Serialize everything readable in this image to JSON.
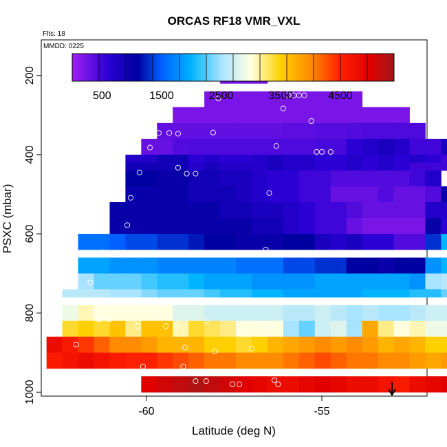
{
  "chart_data": {
    "type": "heatmap",
    "title": "ORCAS RF18 VMR_VXL",
    "flights_label": "Flts: 18",
    "date_label": "MMDD: 0225",
    "xlabel": "Latitude (deg N)",
    "ylabel": "PSXC (mbar)",
    "xlim": [
      -63.0,
      -52.0
    ],
    "ylim": [
      1010,
      110
    ],
    "y_reversed": true,
    "x_ticks": [
      -60,
      -55
    ],
    "y_ticks": [
      200,
      400,
      600,
      800,
      1000
    ],
    "colorbar": {
      "range": [
        0,
        5400
      ],
      "ticks": [
        500,
        1500,
        2500,
        3500,
        4500
      ],
      "stops": [
        {
          "v": 0,
          "color": "#a020f0"
        },
        {
          "v": 600,
          "color": "#2b00d4"
        },
        {
          "v": 1100,
          "color": "#0000a0"
        },
        {
          "v": 1500,
          "color": "#0060ff"
        },
        {
          "v": 2000,
          "color": "#00b4ff"
        },
        {
          "v": 2500,
          "color": "#a8e4ff"
        },
        {
          "v": 3000,
          "color": "#ffffe0"
        },
        {
          "v": 3500,
          "color": "#ffd000"
        },
        {
          "v": 4000,
          "color": "#ff8c00"
        },
        {
          "v": 4500,
          "color": "#ff2000"
        },
        {
          "v": 5000,
          "color": "#e00000"
        },
        {
          "v": 5400,
          "color": "#a01818"
        }
      ]
    },
    "cell_size": {
      "dlat": 0.45,
      "dp": 20
    },
    "cell_rows": [
      {
        "p": 190,
        "lat0": -57.45,
        "values": [
          200
        ]
      },
      {
        "p": 210,
        "lat0": -57.9,
        "values": [
          200,
          200,
          200
        ]
      },
      {
        "p": 250,
        "lat0": -58.35,
        "values": [
          200,
          200,
          200,
          200,
          200,
          200,
          200,
          200,
          200,
          200
        ]
      },
      {
        "p": 270,
        "lat0": -58.35,
        "values": [
          200,
          200,
          200,
          200,
          200,
          200,
          200,
          200,
          200,
          200
        ]
      },
      {
        "p": 290,
        "lat0": -59.25,
        "values": [
          200,
          200,
          200,
          200,
          200,
          200,
          200,
          200,
          200,
          200,
          200,
          200,
          200,
          200,
          200
        ]
      },
      {
        "p": 310,
        "lat0": -59.25,
        "values": [
          200,
          200,
          200,
          200,
          200,
          200,
          200,
          200,
          200,
          200,
          200,
          200,
          200,
          200,
          200
        ]
      },
      {
        "p": 330,
        "lat0": -59.7,
        "values": [
          320,
          320,
          320,
          320,
          320,
          320,
          320,
          320,
          350,
          350,
          380,
          380,
          400,
          420,
          420,
          420,
          420
        ]
      },
      {
        "p": 350,
        "lat0": -59.7,
        "values": [
          320,
          320,
          320,
          320,
          320,
          320,
          320,
          320,
          350,
          350,
          380,
          380,
          400,
          420,
          420,
          420,
          420
        ]
      },
      {
        "p": 370,
        "lat0": -60.15,
        "values": [
          300,
          300,
          400,
          420,
          420,
          420,
          420,
          420,
          420,
          420,
          420,
          450,
          450,
          600,
          700,
          800,
          700,
          500,
          500,
          800,
          800,
          800
        ]
      },
      {
        "p": 390,
        "lat0": -60.15,
        "values": [
          300,
          300,
          400,
          420,
          420,
          420,
          420,
          420,
          420,
          420,
          420,
          450,
          450,
          600,
          700,
          800,
          700,
          500,
          500,
          800,
          800,
          800
        ]
      },
      {
        "p": 410,
        "lat0": -60.6,
        "values": [
          700,
          700,
          900,
          900,
          600,
          700,
          600,
          600,
          700,
          800,
          700,
          700,
          600,
          600,
          700,
          600,
          700,
          600,
          700,
          600,
          500,
          800
        ]
      },
      {
        "p": 430,
        "lat0": -60.6,
        "values": [
          900,
          900,
          900,
          900,
          700,
          800,
          700,
          700,
          700,
          800,
          700,
          700,
          600,
          600,
          700,
          600,
          700,
          600,
          500,
          500,
          500,
          900
        ]
      },
      {
        "p": 450,
        "lat0": -60.6,
        "values": [
          1100,
          1100,
          1000,
          1000,
          900,
          900,
          800,
          800,
          700,
          600,
          600,
          500,
          500,
          400,
          400,
          400,
          400,
          400,
          500,
          700
        ]
      },
      {
        "p": 470,
        "lat0": -60.6,
        "values": [
          1100,
          1100,
          1000,
          1000,
          900,
          900,
          800,
          800,
          700,
          600,
          600,
          500,
          500,
          400,
          400,
          400,
          400,
          400,
          500,
          700
        ]
      },
      {
        "p": 490,
        "lat0": -60.6,
        "values": [
          1000,
          1000,
          1000,
          1000,
          900,
          900,
          900,
          800,
          700,
          600,
          600,
          500,
          500,
          300,
          300,
          300,
          400,
          300,
          300,
          400,
          1000
        ]
      },
      {
        "p": 510,
        "lat0": -60.6,
        "values": [
          1000,
          1000,
          1000,
          1000,
          900,
          900,
          900,
          800,
          700,
          600,
          600,
          500,
          500,
          300,
          300,
          300,
          400,
          300,
          300,
          400,
          1000
        ]
      },
      {
        "p": 530,
        "lat0": -61.05,
        "values": [
          1000,
          1000,
          1000,
          1000,
          1000,
          1000,
          1000,
          900,
          900,
          800,
          800,
          700,
          600,
          500,
          500,
          400,
          300,
          300,
          300,
          300,
          700,
          700,
          700,
          900
        ]
      },
      {
        "p": 550,
        "lat0": -61.05,
        "values": [
          1000,
          1000,
          1000,
          1000,
          1000,
          1000,
          1000,
          900,
          900,
          800,
          800,
          700,
          600,
          500,
          500,
          400,
          300,
          300,
          300,
          300,
          700,
          700,
          700,
          900
        ]
      },
      {
        "p": 570,
        "lat0": -61.05,
        "values": [
          1000,
          1000,
          1000,
          1000,
          1000,
          1000,
          1000,
          1000,
          1000,
          900,
          900,
          700,
          600,
          500,
          500,
          300,
          200,
          200,
          200,
          200,
          1000,
          600,
          1000
        ]
      },
      {
        "p": 590,
        "lat0": -61.05,
        "values": [
          1000,
          1000,
          1000,
          1000,
          1000,
          1000,
          1000,
          1000,
          1000,
          900,
          900,
          700,
          600,
          500,
          500,
          300,
          200,
          200,
          200,
          200,
          1000,
          600,
          1000
        ]
      },
      {
        "p": 610,
        "lat0": -61.95,
        "values": [
          1600,
          1600,
          1500,
          1400,
          1400,
          1300,
          1300,
          1200,
          1100,
          1100,
          1000,
          1000,
          1000,
          1100,
          1100,
          800,
          700,
          800,
          600,
          600,
          400,
          400,
          1300,
          2000,
          2000,
          2000
        ]
      },
      {
        "p": 630,
        "lat0": -61.95,
        "values": [
          1600,
          1600,
          1500,
          1400,
          1400,
          1300,
          1300,
          1200,
          1100,
          1100,
          1000,
          1000,
          1000,
          1100,
          1100,
          800,
          700,
          800,
          600,
          600,
          400,
          400,
          1300,
          2000,
          2000,
          2000
        ]
      },
      {
        "p": 670,
        "lat0": -61.95,
        "values": [
          1900,
          1900,
          1800,
          1800,
          1800,
          1700,
          1700,
          1700,
          1700,
          1700,
          1600,
          1600,
          1600,
          1400,
          1400,
          1300,
          1300,
          1100,
          1100,
          1000,
          1100,
          1100,
          1800,
          2000,
          2000
        ]
      },
      {
        "p": 690,
        "lat0": -61.95,
        "values": [
          1900,
          1900,
          1800,
          1800,
          1800,
          1700,
          1700,
          1700,
          1700,
          1700,
          1600,
          1600,
          1600,
          1400,
          1400,
          1300,
          1300,
          1100,
          1100,
          1000,
          1100,
          1100,
          1800,
          2000,
          2000
        ]
      },
      {
        "p": 710,
        "lat0": -61.95,
        "values": [
          2500,
          2300,
          2300,
          2300,
          2200,
          2100,
          2100,
          2000,
          1900,
          1900,
          1900,
          1800,
          1800,
          1800,
          1800,
          1900,
          1900,
          1900,
          1900,
          1900,
          1900,
          1800,
          2500,
          2600
        ]
      },
      {
        "p": 730,
        "lat0": -61.95,
        "values": [
          2500,
          2300,
          2300,
          2300,
          2200,
          2100,
          2100,
          2000,
          1900,
          1900,
          1900,
          1800,
          1800,
          1800,
          1800,
          1900,
          1900,
          1900,
          1900,
          1900,
          1900,
          1800,
          2500,
          2600
        ]
      },
      {
        "p": 750,
        "lat0": -62.4,
        "values": [
          2600,
          2600,
          2600,
          2500,
          2500,
          2400,
          2300,
          2300,
          2300,
          2200,
          2100,
          2100,
          2000,
          2000,
          1900,
          1900,
          1900,
          1900,
          1900,
          2000,
          2000,
          2000,
          2100,
          2100,
          2300
        ]
      },
      {
        "p": 790,
        "lat0": -62.4,
        "values": [
          2900,
          3100,
          3000,
          3000,
          3000,
          3000,
          3000,
          2800,
          2800,
          2700,
          2700,
          2700,
          2700,
          2700,
          2600,
          2600,
          2700,
          2600,
          2500,
          2600,
          2500,
          2500,
          2600,
          2700,
          2700,
          2700
        ]
      },
      {
        "p": 810,
        "lat0": -62.4,
        "values": [
          2900,
          3100,
          3000,
          3000,
          3000,
          3000,
          3000,
          2800,
          2800,
          2700,
          2700,
          2700,
          2700,
          2700,
          2600,
          2600,
          2700,
          2600,
          2500,
          2600,
          2500,
          2500,
          2600,
          2700,
          2700,
          2700
        ]
      },
      {
        "p": 830,
        "lat0": -62.4,
        "values": [
          3400,
          3500,
          3400,
          3600,
          3200,
          3600,
          3600,
          3100,
          3400,
          3300,
          3200,
          3000,
          3000,
          3000,
          2500,
          2300,
          2700,
          2800,
          2500,
          3800,
          3200,
          3000,
          3100,
          2900,
          2900,
          2900,
          2900,
          3000,
          2800
        ]
      },
      {
        "p": 850,
        "lat0": -62.4,
        "values": [
          3400,
          3500,
          3400,
          3600,
          3200,
          3600,
          3600,
          3100,
          3400,
          3300,
          3200,
          3000,
          3000,
          3000,
          2500,
          2300,
          2700,
          2800,
          2500,
          3800,
          3200,
          3000,
          3100,
          2900,
          2900,
          2900,
          2900,
          3000,
          2800
        ]
      },
      {
        "p": 870,
        "lat0": -62.85,
        "values": [
          4800,
          4600,
          4400,
          4200,
          4000,
          4000,
          3900,
          3700,
          3700,
          3700,
          3500,
          3500,
          3400,
          3500,
          3700,
          3800,
          3900,
          4000,
          3900,
          4000,
          3900,
          3700,
          3800,
          3700,
          3500,
          3500,
          3700,
          3500,
          3500,
          3500,
          3500,
          3500
        ]
      },
      {
        "p": 890,
        "lat0": -62.85,
        "values": [
          4800,
          4600,
          4400,
          4200,
          4000,
          4000,
          3900,
          3700,
          3700,
          3700,
          3500,
          3500,
          3400,
          3500,
          3700,
          3800,
          3900,
          4000,
          3900,
          4000,
          3900,
          3700,
          3800,
          3700,
          3500,
          3500,
          3700,
          3500,
          3500,
          3500,
          3500,
          3500
        ]
      },
      {
        "p": 910,
        "lat0": -62.85,
        "values": [
          4600,
          4700,
          4800,
          4700,
          4600,
          4500,
          4500,
          4400,
          4300,
          4200,
          4100,
          4100,
          4000,
          4000,
          4000,
          4100,
          4200,
          4300,
          4200,
          4100,
          4100,
          4000,
          4000,
          3900,
          3800,
          3900,
          3900,
          3800
        ]
      },
      {
        "p": 930,
        "lat0": -62.85,
        "values": [
          4600,
          4700,
          4800,
          4700,
          4600,
          4500,
          4500,
          4400,
          4300,
          4200,
          4100,
          4100,
          4000,
          4000,
          4000,
          4100,
          4200,
          4300,
          4200,
          4100,
          4100,
          4000,
          4000,
          3900,
          3800,
          3900,
          3900,
          3800
        ]
      },
      {
        "p": 970,
        "lat0": -60.15,
        "values": [
          5000,
          5100,
          5200,
          5300,
          5200,
          5100,
          5000,
          4900,
          4800,
          4800,
          4900,
          5000,
          4900,
          4800,
          4800,
          4700,
          4600,
          4800,
          4900,
          5000
        ]
      },
      {
        "p": 990,
        "lat0": -60.15,
        "values": [
          5000,
          5100,
          5200,
          5300,
          5200,
          5100,
          5000,
          4900,
          4800,
          4800,
          4900,
          5000,
          4900,
          4800,
          4800,
          4700,
          4600,
          4800,
          4900,
          5000
        ]
      }
    ],
    "observations": [
      [
        -57.6,
        204
      ],
      [
        -57.95,
        258
      ],
      [
        -56.1,
        283
      ],
      [
        -55.95,
        250
      ],
      [
        -55.8,
        250
      ],
      [
        -55.65,
        250
      ],
      [
        -55.5,
        250
      ],
      [
        -55.3,
        315
      ],
      [
        -58.1,
        344
      ],
      [
        -59.65,
        345
      ],
      [
        -59.35,
        345
      ],
      [
        -59.1,
        347
      ],
      [
        -59.9,
        382
      ],
      [
        -56.3,
        378
      ],
      [
        -55.15,
        393
      ],
      [
        -55.0,
        393
      ],
      [
        -54.75,
        393
      ],
      [
        -60.2,
        445
      ],
      [
        -59.1,
        433
      ],
      [
        -58.85,
        448
      ],
      [
        -58.6,
        448
      ],
      [
        -56.5,
        497
      ],
      [
        -60.45,
        509
      ],
      [
        -60.55,
        578
      ],
      [
        -61.25,
        647
      ],
      [
        -56.6,
        640
      ],
      [
        -61.6,
        723
      ],
      [
        -61.55,
        800
      ],
      [
        -61.35,
        816
      ],
      [
        -61.05,
        816
      ],
      [
        -60.25,
        833
      ],
      [
        -59.45,
        833
      ],
      [
        -59.15,
        833
      ],
      [
        -58.3,
        820
      ],
      [
        -56.65,
        833
      ],
      [
        -56.45,
        833
      ],
      [
        -57.3,
        847
      ],
      [
        -58.9,
        887
      ],
      [
        -58.05,
        897
      ],
      [
        -57.0,
        890
      ],
      [
        -62.0,
        880
      ],
      [
        -61.55,
        950
      ],
      [
        -62.45,
        950
      ],
      [
        -62.25,
        950
      ],
      [
        -62.15,
        950
      ],
      [
        -60.1,
        935
      ],
      [
        -59.9,
        950
      ],
      [
        -59.65,
        950
      ],
      [
        -58.95,
        935
      ],
      [
        -58.6,
        972
      ],
      [
        -58.3,
        972
      ],
      [
        -57.55,
        980
      ],
      [
        -57.35,
        980
      ],
      [
        -56.45,
        950
      ],
      [
        -56.35,
        970
      ],
      [
        -56.25,
        980
      ]
    ],
    "arrow_marker": {
      "lat": -53.0,
      "p_top": 975,
      "p_bottom": 1007
    }
  }
}
